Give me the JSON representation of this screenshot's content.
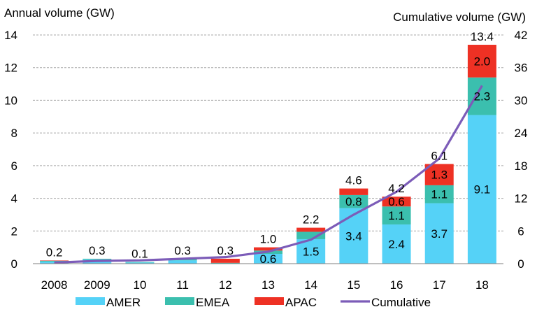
{
  "chart_data": {
    "type": "bar",
    "stacked": true,
    "categories": [
      "2008",
      "2009",
      "10",
      "11",
      "12",
      "13",
      "14",
      "15",
      "16",
      "17",
      "18"
    ],
    "y_left": {
      "label": "Annual volume  (GW)",
      "ticks": [
        "0",
        "2",
        "4",
        "6",
        "8",
        "10",
        "12",
        "14"
      ],
      "lim": [
        0,
        14
      ]
    },
    "y_right": {
      "label": "Cumulative  volume  (GW)",
      "ticks": [
        "0",
        "6",
        "12",
        "18",
        "24",
        "30",
        "36",
        "42"
      ],
      "lim": [
        0,
        42
      ]
    },
    "series": [
      {
        "name": "AMER",
        "color": "#55d2f7",
        "values": [
          0.12,
          0.25,
          0.07,
          0.2,
          0.0,
          0.6,
          1.5,
          3.4,
          2.4,
          3.7,
          9.1
        ],
        "labels": [
          "",
          "",
          "",
          "",
          "",
          "0.6",
          "1.5",
          "3.4",
          "2.4",
          "3.7",
          "9.1"
        ]
      },
      {
        "name": "EMEA",
        "color": "#3bbfae",
        "values": [
          0.06,
          0.05,
          0.03,
          0.07,
          0.05,
          0.2,
          0.45,
          0.8,
          1.1,
          1.1,
          2.3
        ],
        "labels": [
          "",
          "",
          "",
          "",
          "",
          "",
          "",
          "0.8",
          "1.1",
          "1.1",
          "2.3"
        ]
      },
      {
        "name": "APAC",
        "color": "#ee3124",
        "values": [
          0.02,
          0.0,
          0.0,
          0.03,
          0.25,
          0.2,
          0.25,
          0.4,
          0.6,
          1.3,
          2.0
        ],
        "labels": [
          "",
          "",
          "",
          "",
          "",
          "",
          "",
          "",
          "0.6",
          "1.3",
          "2.0"
        ]
      }
    ],
    "totals": [
      "0.2",
      "0.3",
      "0.1",
      "0.3",
      "0.3",
      "1.0",
      "2.2",
      "4.6",
      "4.2",
      "6.1",
      "13.4"
    ],
    "cumulative": {
      "name": "Cumulative",
      "color": "#7c5cb8",
      "values": [
        0.2,
        0.5,
        0.6,
        0.9,
        1.2,
        2.2,
        4.4,
        9.0,
        13.2,
        19.3,
        32.7
      ]
    },
    "grid": true,
    "legend_position": "bottom"
  }
}
